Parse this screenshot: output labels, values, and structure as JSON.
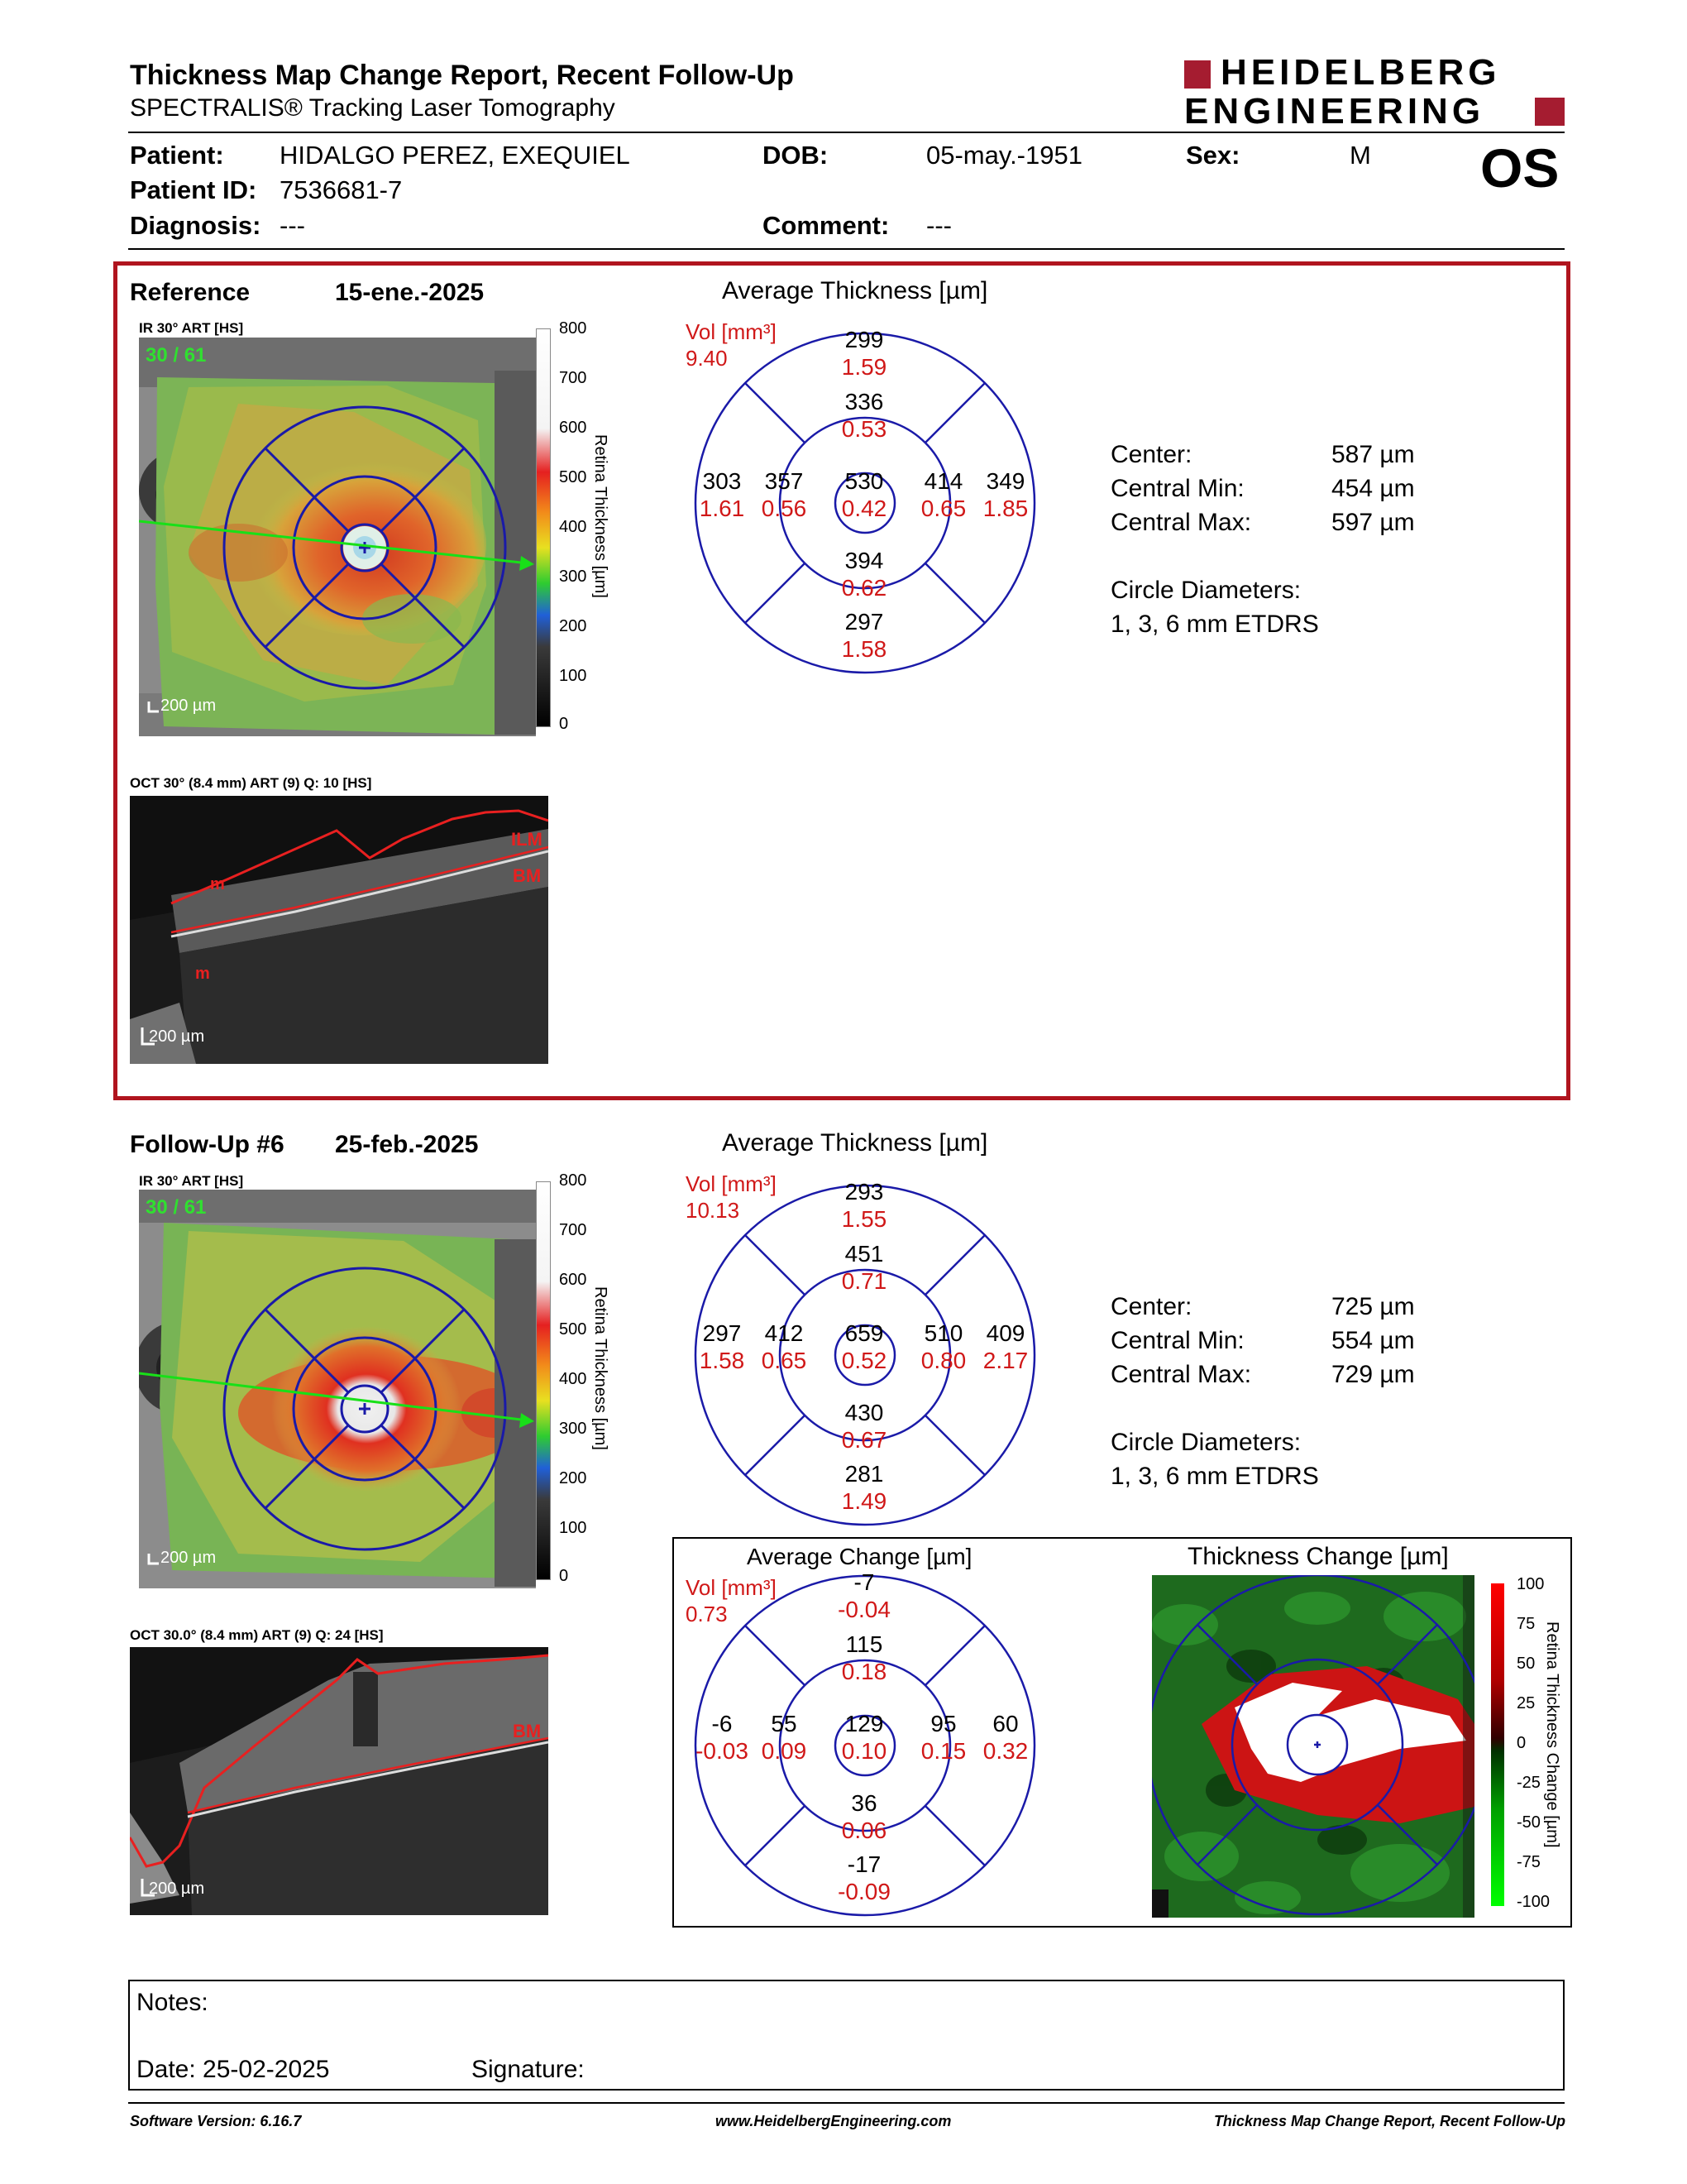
{
  "header": {
    "title": "Thickness Map Change Report, Recent Follow-Up",
    "subtitle": "SPECTRALIS® Tracking Laser Tomography",
    "logo_line1": "HEIDELBERG",
    "logo_line2": "ENGINEERING",
    "eye": "OS"
  },
  "patient": {
    "name_label": "Patient:",
    "name": "HIDALGO PEREZ, EXEQUIEL",
    "dob_label": "DOB:",
    "dob": "05-may.-1951",
    "sex_label": "Sex:",
    "sex": "M",
    "id_label": "Patient ID:",
    "id": "7536681-7",
    "diagnosis_label": "Diagnosis:",
    "diagnosis": "---",
    "comment_label": "Comment:",
    "comment": "---"
  },
  "reference": {
    "label": "Reference",
    "date": "15-ene.-2025",
    "ir_caption": "IR 30° ART [HS]",
    "frame": "30 / 61",
    "oct_caption": "OCT 30° (8.4 mm) ART (9) Q: 10 [HS]",
    "oct_labels": {
      "ilm": "ILM",
      "bm": "BM",
      "m1": "m",
      "m2": "m"
    },
    "scalebar": "200 µm",
    "avg_title": "Average Thickness [µm]",
    "vol_label": "Vol [mm³]",
    "vol_total": "9.40",
    "etdrs": {
      "center": {
        "t": "530",
        "v": "0.42"
      },
      "inner_sup": {
        "t": "336",
        "v": "0.53"
      },
      "inner_temp": {
        "t": "357",
        "v": "0.56"
      },
      "inner_nasal": {
        "t": "414",
        "v": "0.65"
      },
      "inner_inf": {
        "t": "394",
        "v": "0.62"
      },
      "outer_sup": {
        "t": "299",
        "v": "1.59"
      },
      "outer_temp": {
        "t": "303",
        "v": "1.61"
      },
      "outer_nasal": {
        "t": "349",
        "v": "1.85"
      },
      "outer_inf": {
        "t": "297",
        "v": "1.58"
      }
    },
    "stats": [
      {
        "label": "Center:",
        "value": "587 µm"
      },
      {
        "label": "Central Min:",
        "value": "454 µm"
      },
      {
        "label": "Central Max:",
        "value": "597 µm"
      }
    ],
    "circle_title": "Circle Diameters:",
    "circle_value": "1, 3, 6 mm ETDRS"
  },
  "followup": {
    "label": "Follow-Up #6",
    "date": "25-feb.-2025",
    "ir_caption": "IR 30° ART [HS]",
    "frame": "30 / 61",
    "oct_caption": "OCT 30.0° (8.4 mm) ART (9) Q: 24 [HS]",
    "oct_labels": {
      "bm": "BM"
    },
    "scalebar": "200 µm",
    "avg_title": "Average Thickness [µm]",
    "vol_label": "Vol [mm³]",
    "vol_total": "10.13",
    "etdrs": {
      "center": {
        "t": "659",
        "v": "0.52"
      },
      "inner_sup": {
        "t": "451",
        "v": "0.71"
      },
      "inner_temp": {
        "t": "412",
        "v": "0.65"
      },
      "inner_nasal": {
        "t": "510",
        "v": "0.80"
      },
      "inner_inf": {
        "t": "430",
        "v": "0.67"
      },
      "outer_sup": {
        "t": "293",
        "v": "1.55"
      },
      "outer_temp": {
        "t": "297",
        "v": "1.58"
      },
      "outer_nasal": {
        "t": "409",
        "v": "2.17"
      },
      "outer_inf": {
        "t": "281",
        "v": "1.49"
      }
    },
    "stats": [
      {
        "label": "Center:",
        "value": "725 µm"
      },
      {
        "label": "Central Min:",
        "value": "554 µm"
      },
      {
        "label": "Central Max:",
        "value": "729 µm"
      }
    ],
    "circle_title": "Circle Diameters:",
    "circle_value": "1, 3, 6 mm ETDRS"
  },
  "change": {
    "avg_title": "Average Change [µm]",
    "vol_label": "Vol [mm³]",
    "vol_total": "0.73",
    "etdrs": {
      "center": {
        "t": "129",
        "v": "0.10"
      },
      "inner_sup": {
        "t": "115",
        "v": "0.18"
      },
      "inner_temp": {
        "t": "55",
        "v": "0.09"
      },
      "inner_nasal": {
        "t": "95",
        "v": "0.15"
      },
      "inner_inf": {
        "t": "36",
        "v": "0.06"
      },
      "outer_sup": {
        "t": "-7",
        "v": "-0.04"
      },
      "outer_temp": {
        "t": "-6",
        "v": "-0.03"
      },
      "outer_nasal": {
        "t": "60",
        "v": "0.32"
      },
      "outer_inf": {
        "t": "-17",
        "v": "-0.09"
      }
    },
    "map_title": "Thickness Change [µm]",
    "scale_ticks": [
      "100",
      "75",
      "50",
      "25",
      "0",
      "-25",
      "-50",
      "-75",
      "-100"
    ],
    "scale_label": "Retina Thickness Change [µm]"
  },
  "thickness_scale": {
    "ticks": [
      "800",
      "700",
      "600",
      "500",
      "400",
      "300",
      "200",
      "100",
      "0"
    ],
    "label": "Retina Thickness [µm]"
  },
  "notes": {
    "label": "Notes:",
    "date_label": "Date: 25-02-2025",
    "signature_label": "Signature:"
  },
  "footer": {
    "left": "Software Version: 6.16.7",
    "center": "www.HeidelbergEngineering.com",
    "right": "Thickness Map Change Report, Recent Follow-Up"
  },
  "colors": {
    "brand_red": "#a51c30",
    "grid_blue": "#1a1aa8",
    "value_red": "#d01818"
  }
}
